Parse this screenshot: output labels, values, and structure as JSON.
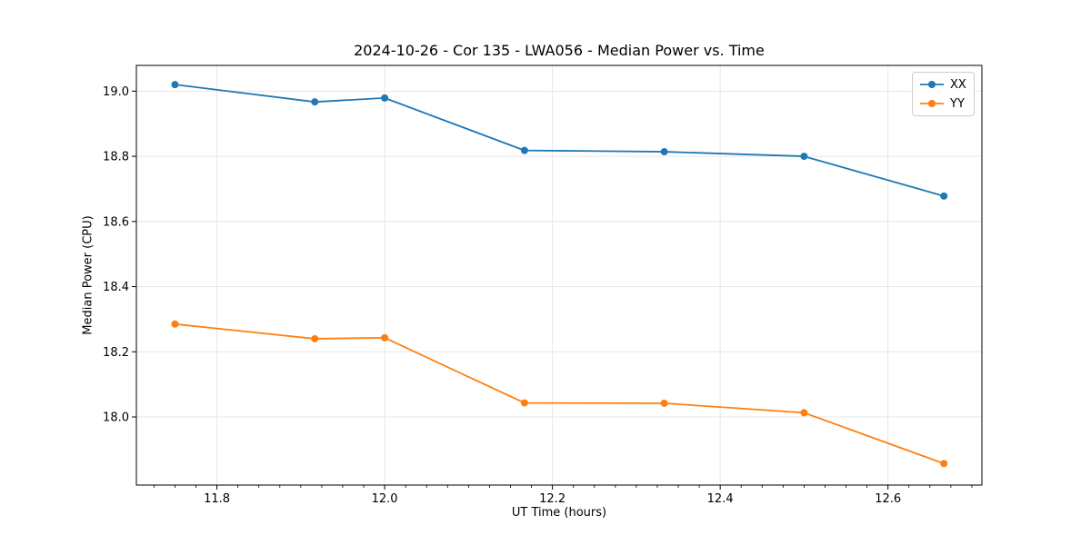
{
  "chart_data": {
    "type": "line",
    "title": "2024-10-26 - Cor 135 - LWA056 - Median Power vs. Time",
    "xlabel": "UT Time (hours)",
    "ylabel": "Median Power (CPU)",
    "x": [
      11.75,
      11.9167,
      12.0,
      12.1667,
      12.3333,
      12.5,
      12.6667
    ],
    "series": [
      {
        "name": "XX",
        "color": "#1f77b4",
        "marker": "circle",
        "values": [
          19.02,
          18.967,
          18.979,
          18.818,
          18.814,
          18.8,
          18.678
        ]
      },
      {
        "name": "YY",
        "color": "#ff7f0e",
        "marker": "circle",
        "values": [
          18.285,
          18.24,
          18.243,
          18.043,
          18.042,
          18.013,
          17.857
        ]
      }
    ],
    "xlim": [
      11.704,
      12.712
    ],
    "ylim": [
      17.791,
      19.079
    ],
    "xticks": [
      11.8,
      12.0,
      12.2,
      12.4,
      12.6
    ],
    "yticks": [
      18.0,
      18.2,
      18.4,
      18.6,
      18.8,
      19.0
    ],
    "x_minor_tick_step": 0.025,
    "grid": true,
    "legend_position": "upper right",
    "colors": {
      "background": "#ffffff",
      "grid": "#e7e7e7",
      "axis": "#000000",
      "legend_border": "#cccccc"
    }
  }
}
